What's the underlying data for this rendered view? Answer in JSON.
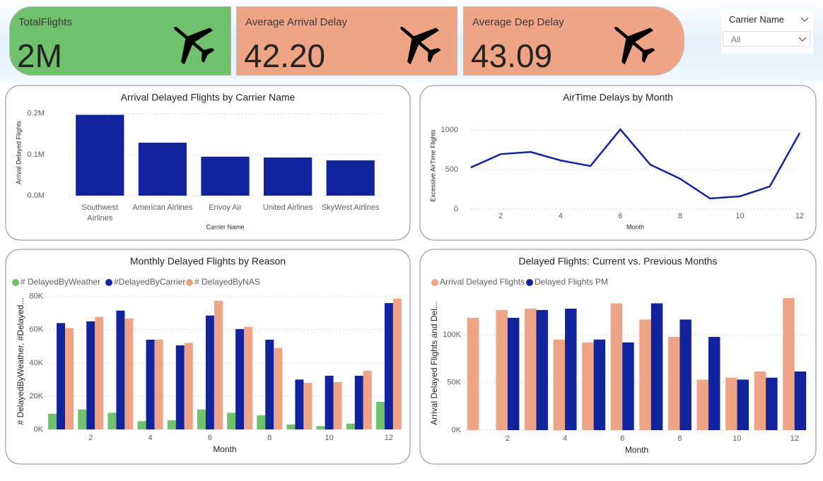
{
  "cards": [
    {
      "label": "TotalFlights",
      "value": "2M"
    },
    {
      "label": "Average Arrival Delay",
      "value": "42.20"
    },
    {
      "label": "Average Dep Delay",
      "value": "43.09"
    }
  ],
  "slicer": {
    "title": "Carrier Name",
    "value": "All"
  },
  "chart_data": [
    {
      "type": "bar",
      "title": "Arrival Delayed Flights by Carrier Name",
      "x_label": "Carrier Name",
      "y_label": "Arrival Delayed Flights",
      "categories": [
        "Southwest Airlines",
        "American Airlines",
        "Envoy Air",
        "United Airlines",
        "SkyWest Airlines"
      ],
      "values": [
        197000,
        129000,
        95000,
        93000,
        86000
      ],
      "color": "#12239e",
      "ylim": [
        0,
        210000
      ],
      "yticks": [
        {
          "value": 0,
          "label": "0.0M"
        },
        {
          "value": 100000,
          "label": "0.1M"
        },
        {
          "value": 200000,
          "label": "0.2M"
        }
      ],
      "grid": true
    },
    {
      "type": "line",
      "title": "AirTime Delays by Month",
      "x_label": "Month",
      "y_label": "Excessive AirTime Flights",
      "x": [
        1,
        2,
        3,
        4,
        5,
        6,
        7,
        8,
        9,
        10,
        11,
        12
      ],
      "values": [
        527,
        696,
        723,
        616,
        545,
        1009,
        563,
        384,
        134,
        161,
        286,
        964
      ],
      "color": "#12239e",
      "xlim": [
        1,
        12
      ],
      "ylim": [
        0,
        1100
      ],
      "xticks": [
        2,
        4,
        6,
        8,
        10,
        12
      ],
      "yticks": [
        0,
        500,
        1000
      ],
      "grid": true
    },
    {
      "type": "grouped_bar",
      "title": "Monthly Delayed Flights by Reason",
      "x_label": "Month",
      "y_label": "# DelayedByWeather, #Delayed...",
      "x": [
        1,
        2,
        3,
        4,
        5,
        6,
        7,
        8,
        9,
        10,
        11,
        12
      ],
      "series": [
        {
          "name": "# DelayedByWeather",
          "color": "#6fc16c",
          "values": [
            9400,
            12000,
            10000,
            5000,
            5500,
            12000,
            10000,
            8500,
            3000,
            2000,
            3500,
            16600
          ]
        },
        {
          "name": "#DelayedByCarrier",
          "color": "#12239e",
          "values": [
            64000,
            65000,
            71500,
            54000,
            50600,
            68500,
            60400,
            54000,
            30000,
            32300,
            32300,
            76000
          ]
        },
        {
          "name": "# DelayedByNAS",
          "color": "#f0a486",
          "values": [
            61000,
            67700,
            66800,
            54000,
            52000,
            77400,
            61700,
            49000,
            28000,
            28500,
            35300,
            78700
          ]
        }
      ],
      "xlim": [
        0.5,
        12.5
      ],
      "ylim": [
        0,
        82000
      ],
      "xticks": [
        2,
        4,
        6,
        8,
        10,
        12
      ],
      "yticks": [
        {
          "value": 0,
          "label": "0K"
        },
        {
          "value": 20000,
          "label": "20K"
        },
        {
          "value": 40000,
          "label": "40K"
        },
        {
          "value": 60000,
          "label": "60K"
        },
        {
          "value": 80000,
          "label": "80K"
        }
      ],
      "grid": true
    },
    {
      "type": "grouped_bar",
      "title": "Delayed Flights: Current vs. Previous Months",
      "x_label": "Month",
      "y_label": "Arrival Delayed Flights and Del...",
      "x": [
        1,
        2,
        3,
        4,
        5,
        6,
        7,
        8,
        9,
        10,
        11,
        12
      ],
      "series": [
        {
          "name": "Arrival Delayed Flights",
          "color": "#f0a486",
          "values": [
            117800,
            126000,
            127400,
            95000,
            92000,
            133000,
            116000,
            97800,
            53000,
            55000,
            61500,
            138500
          ]
        },
        {
          "name": "Delayed Flights PM",
          "color": "#12239e",
          "values": [
            null,
            117800,
            126000,
            127400,
            95000,
            92000,
            133000,
            116000,
            97800,
            53000,
            55000,
            61500
          ]
        }
      ],
      "xlim": [
        0.5,
        12.5
      ],
      "ylim": [
        0,
        140000
      ],
      "xticks": [
        2,
        4,
        6,
        8,
        10,
        12
      ],
      "yticks": [
        {
          "value": 0,
          "label": "0K"
        },
        {
          "value": 50000,
          "label": "50K"
        },
        {
          "value": 100000,
          "label": "100K"
        }
      ],
      "grid": true
    }
  ]
}
